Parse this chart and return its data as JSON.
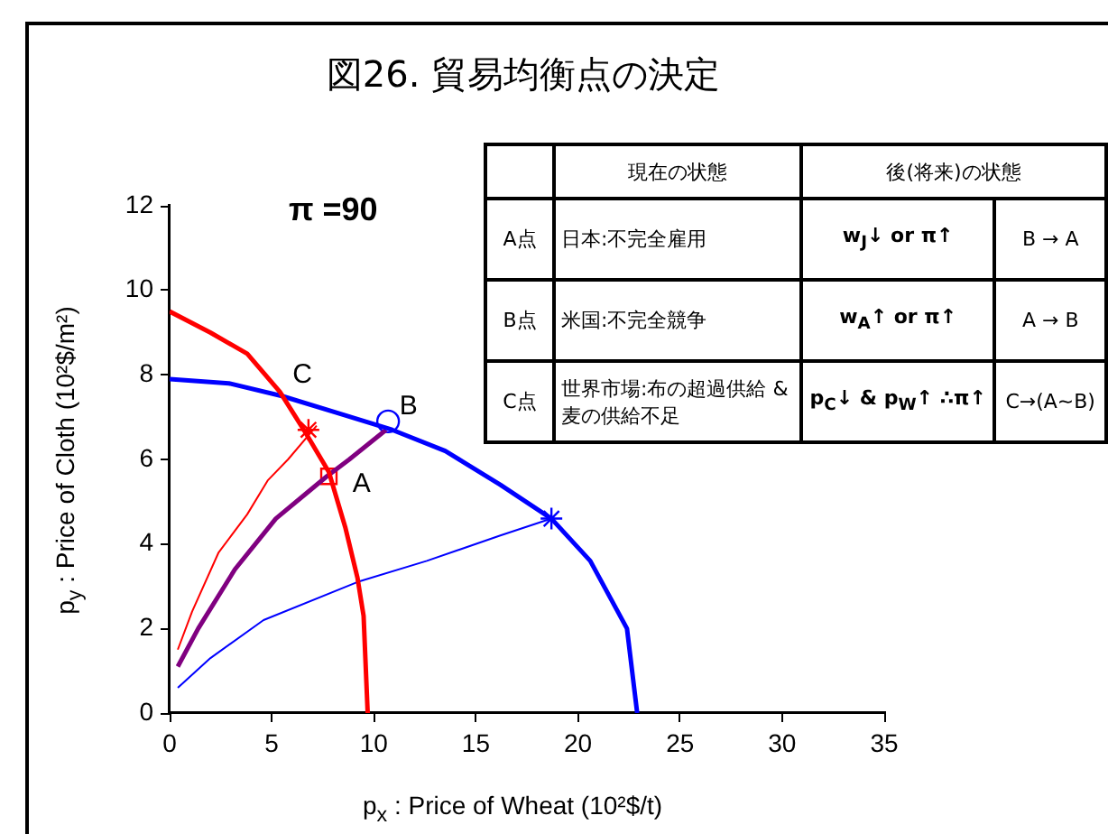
{
  "chart_data": {
    "type": "line",
    "title": "図26. 貿易均衡点の決定",
    "xlabel": "p$_{x}$ : Price of Wheat (10²$/t)",
    "ylabel": "p$_{y}$ : Price of Cloth (10²$/m²)",
    "xlim": [
      0,
      35
    ],
    "xticks": [
      0,
      5,
      10,
      15,
      20,
      25,
      30,
      35
    ],
    "ylim": [
      0,
      12
    ],
    "yticks": [
      0,
      2,
      4,
      6,
      8,
      10,
      12
    ],
    "grid": false,
    "legend": false,
    "marker": "none",
    "line_style": "solid",
    "series": [
      {
        "type": "line",
        "color": "#ff0000",
        "x": [
          0,
          2,
          3.8,
          5.4,
          6.7,
          7.8,
          8.6,
          9.2,
          9.5,
          9.7
        ],
        "values": [
          9.5,
          9.0,
          8.5,
          7.6,
          6.6,
          5.7,
          4.4,
          3.2,
          2.3,
          0
        ]
      },
      {
        "type": "line",
        "color": "#0000ff",
        "x": [
          0,
          2.9,
          5.5,
          8.2,
          10.9,
          13.5,
          16.2,
          18.7,
          20.6,
          22.4,
          22.9
        ],
        "values": [
          7.9,
          7.8,
          7.5,
          7.1,
          6.7,
          6.2,
          5.4,
          4.6,
          3.6,
          2.0,
          0
        ]
      },
      {
        "type": "line",
        "color": "#800080",
        "x": [
          0.4,
          1.4,
          3.2,
          5.2,
          6.7,
          7.7,
          8.8,
          10.6
        ],
        "values": [
          1.1,
          2.0,
          3.4,
          4.6,
          5.2,
          5.6,
          6.0,
          6.7
        ]
      },
      {
        "type": "line",
        "color": "#ff0000",
        "x": [
          0.4,
          1.1,
          2.4,
          3.8,
          4.8,
          5.8,
          7.2
        ],
        "values": [
          1.5,
          2.4,
          3.8,
          4.7,
          5.5,
          6.0,
          6.8
        ]
      },
      {
        "type": "line",
        "color": "#0000ff",
        "x": [
          0.4,
          2,
          4.6,
          9.2,
          12.6,
          16.2,
          18.7
        ],
        "values": [
          0.6,
          1.3,
          2.2,
          3.1,
          3.6,
          4.2,
          4.6
        ]
      },
      {
        "type": "scatter",
        "marker": "square",
        "color": "#ff0000",
        "x": [
          7.8
        ],
        "values": [
          5.6
        ]
      },
      {
        "type": "scatter",
        "marker": "circle",
        "color": "#0000ff",
        "x": [
          10.7
        ],
        "values": [
          6.9
        ]
      },
      {
        "type": "scatter",
        "marker": "cross",
        "color": "#0000ff",
        "x": [
          18.7
        ],
        "values": [
          4.6
        ]
      },
      {
        "type": "scatter",
        "marker": "cross",
        "color": "#ff0000",
        "x": [
          6.8
        ],
        "values": [
          6.7
        ]
      }
    ],
    "annotations": [
      {
        "text": "C",
        "x": 5.4,
        "y": 7.6
      },
      {
        "text": "B",
        "x": 10.7,
        "y": 6.9
      },
      {
        "text": "A",
        "x": 7.8,
        "y": 5.6
      },
      "π =90",
      "現在の状態",
      "後(将来)の状態",
      "A点",
      "日本:不完全雇用",
      "w$_{J}$↓ or π↑",
      "B → A",
      "B点",
      "米国:不完全競争",
      "w$_{A}$↑ or π↑",
      "A → B",
      "C点",
      "世界市場:布の超過供給 & 麦の供給不足",
      "p$_{C}$↓ & p$_{W}$↑ ∴π↑",
      "C→(A~B)"
    ]
  }
}
